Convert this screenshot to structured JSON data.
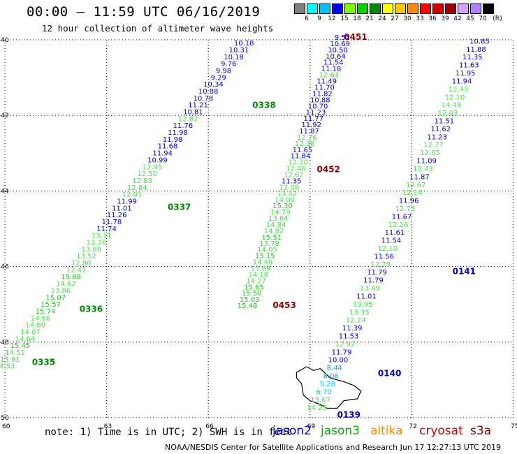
{
  "header": {
    "title": "00:00 — 11:59 UTC 06/16/2019",
    "subtitle": "12 hour collection of altimeter wave heights"
  },
  "legend": {
    "unit": "(ft)",
    "bins": [
      {
        "label": "3",
        "color": "#7f7f7f"
      },
      {
        "label": "6",
        "color": "#00ffff"
      },
      {
        "label": "9",
        "color": "#00bfff"
      },
      {
        "label": "12",
        "color": "#0000ff"
      },
      {
        "label": "15",
        "color": "#7fff00"
      },
      {
        "label": "18",
        "color": "#00d000"
      },
      {
        "label": "21",
        "color": "#008c00"
      },
      {
        "label": "24",
        "color": "#ffff00"
      },
      {
        "label": "27",
        "color": "#ffc800"
      },
      {
        "label": "30",
        "color": "#ff8c00"
      },
      {
        "label": "33",
        "color": "#ff0000"
      },
      {
        "label": "36",
        "color": "#d00000"
      },
      {
        "label": "39",
        "color": "#9b0000"
      },
      {
        "label": "42",
        "color": "#d8a0ff"
      },
      {
        "label": "45",
        "color": "#b080ff"
      },
      {
        "label": "70",
        "color": "#000000"
      }
    ]
  },
  "map": {
    "lat_ticks": [
      "-40",
      "-42",
      "-44",
      "-46",
      "-48",
      "-50"
    ],
    "lon_ticks": [
      "60",
      "63",
      "66",
      "69",
      "72",
      "75"
    ]
  },
  "tracks": [
    {
      "name": "jason3-0335-0338",
      "pass_labels": [
        {
          "text": "0338",
          "lon": 67.3,
          "lat": -41.8,
          "color": "#008800"
        },
        {
          "text": "0337",
          "lon": 64.8,
          "lat": -44.5,
          "color": "#008800"
        },
        {
          "text": "0336",
          "lon": 62.2,
          "lat": -47.2,
          "color": "#008800"
        },
        {
          "text": "0335",
          "lon": 60.8,
          "lat": -48.6,
          "color": "#008800"
        }
      ],
      "start": [
        67.05,
        -40.15
      ],
      "end": [
        60.0,
        -48.7
      ],
      "readings": [
        {
          "v": "10.18",
          "c": "#0000cc"
        },
        {
          "v": "10.31",
          "c": "#0000cc"
        },
        {
          "v": "10.18",
          "c": "#0000cc"
        },
        {
          "v": "9.76",
          "c": "#0000cc"
        },
        {
          "v": "9.98",
          "c": "#0000cc"
        },
        {
          "v": "9.29",
          "c": "#0000cc"
        },
        {
          "v": "10.34",
          "c": "#0000cc"
        },
        {
          "v": "10.88",
          "c": "#0000cc"
        },
        {
          "v": "10.78",
          "c": "#0000cc"
        },
        {
          "v": "11.21",
          "c": "#0000cc"
        },
        {
          "v": "10.81",
          "c": "#0000cc"
        },
        {
          "v": "12.82",
          "c": "#44dd44"
        },
        {
          "v": "11.76",
          "c": "#0000cc"
        },
        {
          "v": "11.98",
          "c": "#0000cc"
        },
        {
          "v": "11.98",
          "c": "#0000cc"
        },
        {
          "v": "11.68",
          "c": "#0000cc"
        },
        {
          "v": "11.94",
          "c": "#0000cc"
        },
        {
          "v": "10.99",
          "c": "#0000cc"
        },
        {
          "v": "12.95",
          "c": "#44dd44"
        },
        {
          "v": "12.50",
          "c": "#44dd44"
        },
        {
          "v": "12.83",
          "c": "#44dd44"
        },
        {
          "v": "12.84",
          "c": "#44dd44"
        },
        {
          "v": "12.01",
          "c": "#44dd44"
        },
        {
          "v": "11.99",
          "c": "#0000cc"
        },
        {
          "v": "11.01",
          "c": "#0000cc"
        },
        {
          "v": "11.26",
          "c": "#0000cc"
        },
        {
          "v": "11.78",
          "c": "#0000cc"
        },
        {
          "v": "11.74",
          "c": "#0000cc"
        },
        {
          "v": "13.11",
          "c": "#44dd44"
        },
        {
          "v": "13.26",
          "c": "#44dd44"
        },
        {
          "v": "13.89",
          "c": "#44dd44"
        },
        {
          "v": "13.52",
          "c": "#44dd44"
        },
        {
          "v": "12.88",
          "c": "#44dd44"
        },
        {
          "v": "12.47",
          "c": "#44dd44"
        },
        {
          "v": "15.88",
          "c": "#22bb22"
        },
        {
          "v": "14.62",
          "c": "#44dd44"
        },
        {
          "v": "13.86",
          "c": "#44dd44"
        },
        {
          "v": "15.07",
          "c": "#22bb22"
        },
        {
          "v": "15.57",
          "c": "#22bb22"
        },
        {
          "v": "15.74",
          "c": "#22bb22"
        },
        {
          "v": "14.66",
          "c": "#44dd44"
        },
        {
          "v": "14.80",
          "c": "#44dd44"
        },
        {
          "v": "14.07",
          "c": "#44dd44"
        },
        {
          "v": "14.64",
          "c": "#44dd44"
        },
        {
          "v": "15.45",
          "c": "#22bb22"
        },
        {
          "v": "14.51",
          "c": "#44dd44"
        },
        {
          "v": "13.91",
          "c": "#44dd44"
        },
        {
          "v": "14.53",
          "c": "#44dd44"
        }
      ]
    },
    {
      "name": "cryosat-0451-0453",
      "pass_labels": [
        {
          "text": "0451",
          "lon": 70.0,
          "lat": -40.0,
          "color": "#880000"
        },
        {
          "text": "0452",
          "lon": 69.2,
          "lat": -43.5,
          "color": "#880000"
        },
        {
          "text": "0453",
          "lon": 67.9,
          "lat": -47.1,
          "color": "#880000"
        }
      ],
      "start": [
        69.95,
        -40.0
      ],
      "end": [
        67.15,
        -47.1
      ],
      "readings": [
        {
          "v": "9.55",
          "c": "#0000cc"
        },
        {
          "v": "10.69",
          "c": "#0000cc"
        },
        {
          "v": "10.50",
          "c": "#0000cc"
        },
        {
          "v": "10.64",
          "c": "#0000cc"
        },
        {
          "v": "11.54",
          "c": "#0000cc"
        },
        {
          "v": "11.18",
          "c": "#0000cc"
        },
        {
          "v": "12.63",
          "c": "#44dd44"
        },
        {
          "v": "11.49",
          "c": "#0000cc"
        },
        {
          "v": "11.70",
          "c": "#0000cc"
        },
        {
          "v": "11.82",
          "c": "#0000cc"
        },
        {
          "v": "10.88",
          "c": "#0000cc"
        },
        {
          "v": "10.70",
          "c": "#0000cc"
        },
        {
          "v": "11.23",
          "c": "#0000cc"
        },
        {
          "v": "11.77",
          "c": "#0000cc"
        },
        {
          "v": "11.92",
          "c": "#0000cc"
        },
        {
          "v": "11.87",
          "c": "#0000cc"
        },
        {
          "v": "12.76",
          "c": "#44dd44"
        },
        {
          "v": "12.38",
          "c": "#44dd44"
        },
        {
          "v": "11.65",
          "c": "#0000cc"
        },
        {
          "v": "11.84",
          "c": "#0000cc"
        },
        {
          "v": "12.20",
          "c": "#44dd44"
        },
        {
          "v": "12.46",
          "c": "#44dd44"
        },
        {
          "v": "12.62",
          "c": "#44dd44"
        },
        {
          "v": "11.35",
          "c": "#0000cc"
        },
        {
          "v": "12.08",
          "c": "#44dd44"
        },
        {
          "v": "13.52",
          "c": "#44dd44"
        },
        {
          "v": "14.00",
          "c": "#44dd44"
        },
        {
          "v": "15.30",
          "c": "#22bb22"
        },
        {
          "v": "14.79",
          "c": "#44dd44"
        },
        {
          "v": "13.64",
          "c": "#44dd44"
        },
        {
          "v": "14.84",
          "c": "#44dd44"
        },
        {
          "v": "14.82",
          "c": "#44dd44"
        },
        {
          "v": "15.51",
          "c": "#22bb22"
        },
        {
          "v": "13.78",
          "c": "#44dd44"
        },
        {
          "v": "14.05",
          "c": "#44dd44"
        },
        {
          "v": "15.15",
          "c": "#22bb22"
        },
        {
          "v": "14.46",
          "c": "#44dd44"
        },
        {
          "v": "13.89",
          "c": "#44dd44"
        },
        {
          "v": "14.18",
          "c": "#44dd44"
        },
        {
          "v": "14.27",
          "c": "#44dd44"
        },
        {
          "v": "15.65",
          "c": "#22bb22"
        },
        {
          "v": "15.50",
          "c": "#22bb22"
        },
        {
          "v": "15.03",
          "c": "#22bb22"
        },
        {
          "v": "15.48",
          "c": "#22bb22"
        }
      ]
    },
    {
      "name": "jason2-0139-0141",
      "pass_labels": [
        {
          "text": "0141",
          "lon": 73.2,
          "lat": -46.2,
          "color": "#0000bb"
        },
        {
          "text": "0140",
          "lon": 71.0,
          "lat": -48.9,
          "color": "#0000bb"
        },
        {
          "text": "0139",
          "lon": 69.8,
          "lat": -50.0,
          "color": "#0000bb"
        }
      ],
      "start": [
        74.0,
        -40.1
      ],
      "end": [
        69.2,
        -49.8
      ],
      "readings": [
        {
          "v": "10.85",
          "c": "#0000cc"
        },
        {
          "v": "11.88",
          "c": "#0000cc"
        },
        {
          "v": "11.35",
          "c": "#0000cc"
        },
        {
          "v": "11.63",
          "c": "#0000cc"
        },
        {
          "v": "11.95",
          "c": "#0000cc"
        },
        {
          "v": "11.94",
          "c": "#0000cc"
        },
        {
          "v": "12.43",
          "c": "#44dd44"
        },
        {
          "v": "12.10",
          "c": "#44dd44"
        },
        {
          "v": "14.48",
          "c": "#44dd44"
        },
        {
          "v": "12.03",
          "c": "#44dd44"
        },
        {
          "v": "11.51",
          "c": "#0000cc"
        },
        {
          "v": "11.62",
          "c": "#0000cc"
        },
        {
          "v": "11.23",
          "c": "#0000cc"
        },
        {
          "v": "12.77",
          "c": "#44dd44"
        },
        {
          "v": "12.05",
          "c": "#44dd44"
        },
        {
          "v": "11.09",
          "c": "#0000cc"
        },
        {
          "v": "13.43",
          "c": "#44dd44"
        },
        {
          "v": "11.87",
          "c": "#0000cc"
        },
        {
          "v": "12.67",
          "c": "#44dd44"
        },
        {
          "v": "12.14",
          "c": "#44dd44"
        },
        {
          "v": "11.96",
          "c": "#0000cc"
        },
        {
          "v": "12.73",
          "c": "#44dd44"
        },
        {
          "v": "11.67",
          "c": "#0000cc"
        },
        {
          "v": "12.16",
          "c": "#44dd44"
        },
        {
          "v": "11.61",
          "c": "#0000cc"
        },
        {
          "v": "11.54",
          "c": "#0000cc"
        },
        {
          "v": "12.10",
          "c": "#44dd44"
        },
        {
          "v": "11.56",
          "c": "#0000cc"
        },
        {
          "v": "12.78",
          "c": "#44dd44"
        },
        {
          "v": "11.79",
          "c": "#0000cc"
        },
        {
          "v": "11.79",
          "c": "#0000cc"
        },
        {
          "v": "13.49",
          "c": "#44dd44"
        },
        {
          "v": "11.01",
          "c": "#0000cc"
        },
        {
          "v": "13.95",
          "c": "#44dd44"
        },
        {
          "v": "13.35",
          "c": "#44dd44"
        },
        {
          "v": "12.24",
          "c": "#44dd44"
        },
        {
          "v": "11.39",
          "c": "#0000cc"
        },
        {
          "v": "11.53",
          "c": "#0000cc"
        },
        {
          "v": "12.92",
          "c": "#44dd44"
        },
        {
          "v": "11.79",
          "c": "#0000cc"
        },
        {
          "v": "10.00",
          "c": "#0000cc"
        },
        {
          "v": "8.44",
          "c": "#00aadd"
        },
        {
          "v": "8.06",
          "c": "#00aadd"
        },
        {
          "v": "5.28",
          "c": "#00ccee"
        },
        {
          "v": "6.70",
          "c": "#00ccee"
        },
        {
          "v": "13.67",
          "c": "#44dd44"
        },
        {
          "v": "14.25",
          "c": "#44dd44"
        }
      ]
    }
  ],
  "footer": {
    "note": "note:  1) Time is in UTC; 2) SWH is in feet",
    "satellites": [
      {
        "name": "jason2",
        "color": "#0000cc"
      },
      {
        "name": "jason3",
        "color": "#00aa00"
      },
      {
        "name": "altika",
        "color": "#ff8800"
      },
      {
        "name": "cryosat",
        "color": "#cc0000"
      },
      {
        "name": "s3a",
        "color": "#880000"
      }
    ],
    "credit": "NOAA/NESDIS Center for Satellite Applications and Research   Jun 17 12:27:13 UTC 2019"
  }
}
